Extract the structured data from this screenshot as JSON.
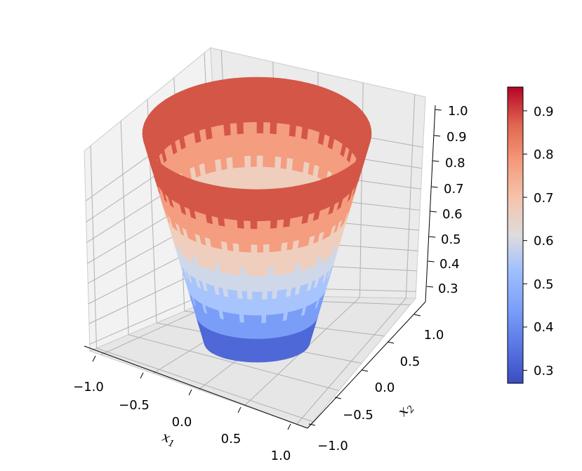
{
  "chart_data": {
    "type": "surface3d",
    "colormap": "coolwarm",
    "x_axis": {
      "label": "x",
      "label_sub": "1",
      "ticks": [
        "−1.0",
        "−0.5",
        "0.0",
        "0.5",
        "1.0"
      ],
      "lim": [
        -1.0,
        1.0
      ]
    },
    "y_axis": {
      "label": "x",
      "label_sub": "2",
      "ticks": [
        "−1.0",
        "−0.5",
        "0.0",
        "0.5",
        "1.0"
      ],
      "lim": [
        -1.0,
        1.0
      ]
    },
    "z_axis": {
      "ticks": [
        "0.3",
        "0.4",
        "0.5",
        "0.6",
        "0.7",
        "0.8",
        "0.9",
        "1.0"
      ],
      "lim": [
        0.25,
        1.0
      ]
    },
    "colorbar": {
      "ticks": [
        "0.3",
        "0.4",
        "0.5",
        "0.6",
        "0.7",
        "0.8",
        "0.9"
      ],
      "vmin": 0.27,
      "vmax": 0.955
    },
    "surface": {
      "shape": "frustum",
      "bottom": {
        "z": 0.27,
        "radius": 0.5
      },
      "top": {
        "z": 0.955,
        "radius": 1.0
      },
      "color_bands": [
        0.27,
        0.36,
        0.45,
        0.54,
        0.62,
        0.72,
        0.82,
        0.955
      ]
    },
    "grid": true,
    "legend": "none"
  }
}
